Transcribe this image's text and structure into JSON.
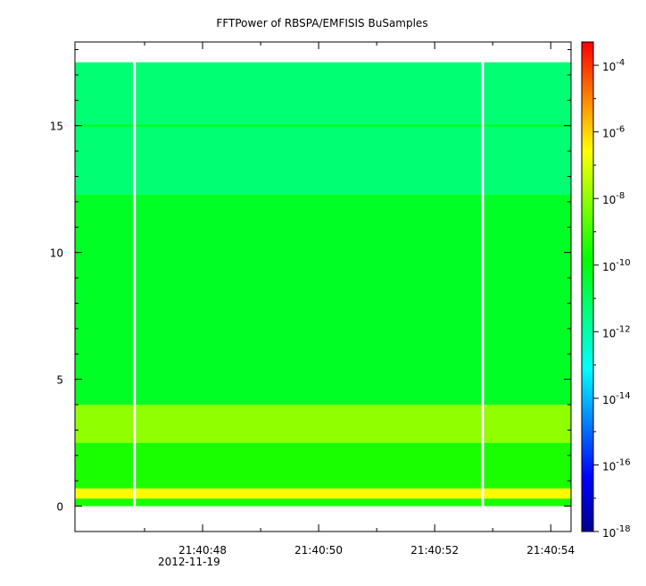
{
  "chart_data": {
    "type": "heatmap",
    "title": "FFTPower of RBSPA/EMFISIS  BuSamples",
    "xlabel": "",
    "ylabel": "",
    "x_axis": {
      "kind": "time",
      "date_label": "2012-11-19",
      "start_seconds": 45.8,
      "end_seconds": 54.35,
      "major_ticks": [
        {
          "sec": 48,
          "label": "21:40:48"
        },
        {
          "sec": 50,
          "label": "21:40:50"
        },
        {
          "sec": 52,
          "label": "21:40:52"
        },
        {
          "sec": 54,
          "label": "21:40:54"
        }
      ],
      "minor_ticks_sec": [
        47,
        49,
        51,
        53
      ]
    },
    "y_axis": {
      "ylim": [
        -1,
        18.3
      ],
      "ticks": [
        0,
        5,
        10,
        15
      ],
      "minor_ticks": [
        1,
        2,
        3,
        4,
        6,
        7,
        8,
        9,
        11,
        12,
        13,
        14,
        16,
        17,
        18
      ]
    },
    "colorbar": {
      "scale": "log",
      "range_exponent": [
        -18,
        -3.3
      ],
      "tick_exponents": [
        -18,
        -16,
        -14,
        -12,
        -10,
        -8,
        -6,
        -4
      ],
      "tick_base": "10",
      "colors": [
        "#00008f",
        "#0000ff",
        "#0080ff",
        "#00ffff",
        "#00ff80",
        "#00ff00",
        "#80ff00",
        "#ffff00",
        "#ff8000",
        "#ff0000"
      ]
    },
    "data_gaps_sec": [
      [
        46.8,
        46.85
      ],
      [
        52.8,
        52.85
      ]
    ],
    "bands": [
      {
        "y_range": [
          0,
          0.3
        ],
        "log10_power": -9.5
      },
      {
        "y_range": [
          0.3,
          0.7
        ],
        "log10_power": -6.5
      },
      {
        "y_range": [
          0.7,
          2.5
        ],
        "log10_power": -9.5
      },
      {
        "y_range": [
          2.5,
          4.0
        ],
        "log10_power": -8.0
      },
      {
        "y_range": [
          4.0,
          12.3
        ],
        "log10_power": -10.3
      },
      {
        "y_range": [
          12.3,
          17.5
        ],
        "log10_power": -11.3
      }
    ],
    "lines": [
      {
        "y": 15.0,
        "log10_power": -10.0
      }
    ]
  }
}
